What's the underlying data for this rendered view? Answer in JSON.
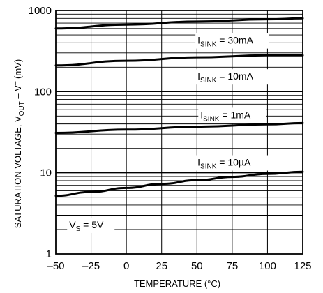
{
  "chart_data": {
    "type": "line",
    "title": "",
    "xlabel": "TEMPERATURE (°C)",
    "ylabel": "SATURATION VOLTAGE, V",
    "ylabel_parts": [
      "SATURATION VOLTAGE, V",
      "OUT",
      " – V",
      "–",
      "  (mV)"
    ],
    "xlim": [
      -50,
      125
    ],
    "ylim": [
      1,
      1000
    ],
    "yscale": "log",
    "grid": true,
    "x_ticks": [
      -50,
      -25,
      0,
      25,
      50,
      75,
      100,
      125
    ],
    "x_tick_labels": [
      "–50",
      "–25",
      "0",
      "25",
      "50",
      "75",
      "100",
      "125"
    ],
    "y_ticks": [
      1,
      10,
      100,
      1000
    ],
    "y_tick_labels": [
      "1",
      "10",
      "100",
      "1000"
    ],
    "series": [
      {
        "name": "I SINK = 30mA",
        "label_main": "I",
        "label_sub": "SINK",
        "label_rest": " = 30mA",
        "x": [
          -50,
          0,
          50,
          100,
          125
        ],
        "y": [
          600,
          670,
          730,
          780,
          800
        ],
        "label_x": 75,
        "label_y": 430
      },
      {
        "name": "I SINK = 10mA",
        "label_main": "I",
        "label_sub": "SINK",
        "label_rest": " = 10mA",
        "x": [
          -50,
          0,
          50,
          100,
          125
        ],
        "y": [
          210,
          240,
          265,
          280,
          280
        ],
        "label_x": 75,
        "label_y": 155
      },
      {
        "name": "I SINK = 1mA",
        "label_main": "I",
        "label_sub": "SINK",
        "label_rest": " = 1mA",
        "x": [
          -50,
          0,
          50,
          100,
          125
        ],
        "y": [
          31,
          34,
          37,
          39.5,
          41
        ],
        "label_x": 75,
        "label_y": 52
      },
      {
        "name": "I SINK = 10µA",
        "label_main": "I",
        "label_sub": "SINK",
        "label_rest": " = 10µA",
        "x": [
          -50,
          -25,
          0,
          25,
          50,
          75,
          100,
          125
        ],
        "y": [
          5.2,
          5.8,
          6.5,
          7.3,
          8.1,
          8.9,
          9.7,
          10.3
        ],
        "label_x": 75,
        "label_y": 13.5
      }
    ],
    "annotations": [
      {
        "main": "V",
        "sub": "S",
        "rest": " = 5V",
        "x": -40,
        "y": 2.3
      }
    ]
  }
}
